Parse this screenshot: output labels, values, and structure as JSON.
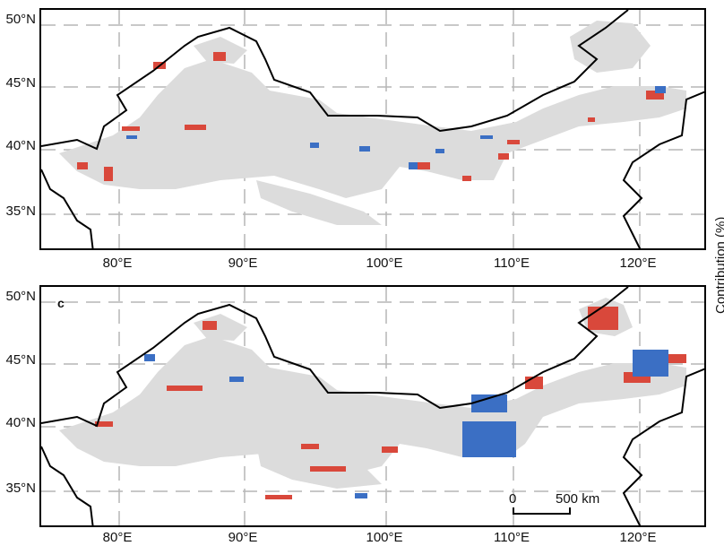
{
  "figure": {
    "lat_labels": [
      "50°N",
      "45°N",
      "40°N",
      "35°N"
    ],
    "lon_labels": [
      "80°E",
      "90°E",
      "100°E",
      "110°E",
      "120°E"
    ],
    "side_title": "Contribution (%)",
    "panels": [
      {
        "id": "top",
        "letter": ""
      },
      {
        "id": "bottom",
        "letter": "c"
      }
    ],
    "scalebar": {
      "start_label": "0",
      "end_label": "500 km"
    },
    "colors": {
      "land": "#dcdcdc",
      "positive": "#d9483b",
      "negative": "#3b6fc4",
      "boundary": "#000000",
      "grid": "#b5b5b5"
    }
  }
}
